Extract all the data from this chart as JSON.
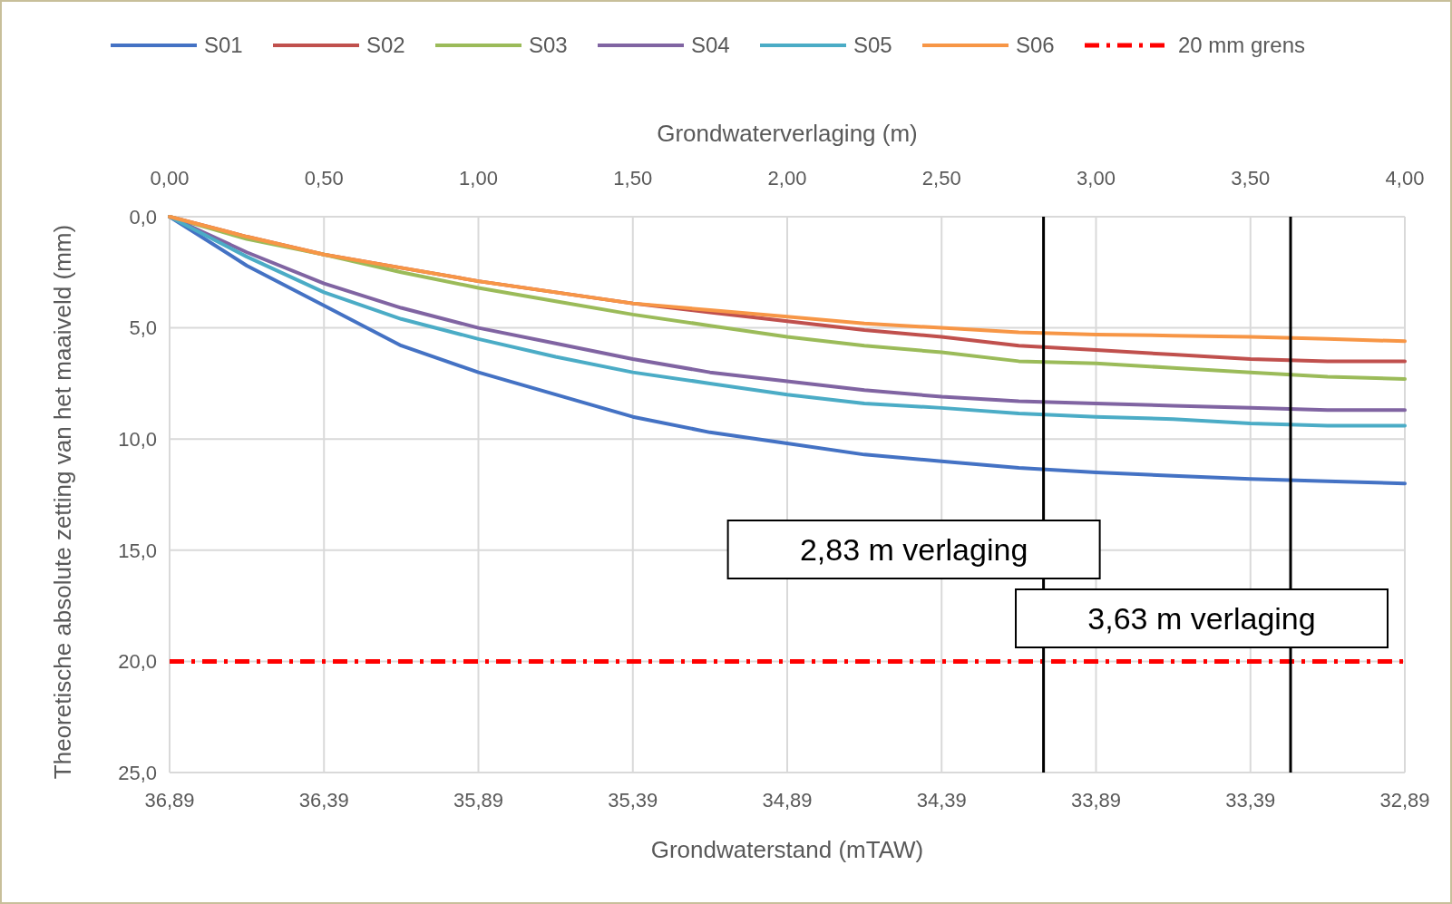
{
  "chart_data": {
    "type": "line",
    "xlabel": "Grondwaterstand (mTAW)",
    "x2label": "Grondwaterverlaging (m)",
    "ylabel": "Theoretische absolute zetting van het maaiveld (mm)",
    "x": [
      36.89,
      36.64,
      36.39,
      36.14,
      35.89,
      35.64,
      35.39,
      35.14,
      34.89,
      34.64,
      34.39,
      34.14,
      33.89,
      33.64,
      33.39,
      33.14,
      32.89
    ],
    "series": [
      {
        "name": "S01",
        "color": "#4472c4",
        "values": [
          0,
          2.2,
          4.0,
          5.8,
          7.0,
          8.0,
          9.0,
          9.7,
          10.2,
          10.7,
          11.0,
          11.3,
          11.5,
          11.65,
          11.8,
          11.9,
          12.0
        ]
      },
      {
        "name": "S02",
        "color": "#c0504d",
        "values": [
          0,
          0.9,
          1.7,
          2.3,
          2.9,
          3.4,
          3.9,
          4.3,
          4.7,
          5.1,
          5.4,
          5.8,
          6.0,
          6.2,
          6.4,
          6.5,
          6.5
        ]
      },
      {
        "name": "S03",
        "color": "#9bbb59",
        "values": [
          0,
          1.0,
          1.7,
          2.5,
          3.2,
          3.8,
          4.4,
          4.9,
          5.4,
          5.8,
          6.1,
          6.5,
          6.6,
          6.8,
          7.0,
          7.2,
          7.3
        ]
      },
      {
        "name": "S04",
        "color": "#8064a2",
        "values": [
          0,
          1.6,
          3.0,
          4.1,
          5.0,
          5.7,
          6.4,
          7.0,
          7.4,
          7.8,
          8.1,
          8.3,
          8.4,
          8.5,
          8.6,
          8.7,
          8.7
        ]
      },
      {
        "name": "S05",
        "color": "#4bacc6",
        "values": [
          0,
          1.8,
          3.4,
          4.6,
          5.5,
          6.3,
          7.0,
          7.5,
          8.0,
          8.4,
          8.6,
          8.85,
          9.0,
          9.1,
          9.3,
          9.4,
          9.4
        ]
      },
      {
        "name": "S06",
        "color": "#f79646",
        "values": [
          0,
          0.9,
          1.7,
          2.3,
          2.9,
          3.4,
          3.9,
          4.2,
          4.5,
          4.8,
          5.0,
          5.2,
          5.3,
          5.35,
          5.4,
          5.5,
          5.6
        ]
      }
    ],
    "xlim": [
      36.89,
      32.89
    ],
    "xticks": [
      {
        "value": 36.89,
        "label": "36,89"
      },
      {
        "value": 36.39,
        "label": "36,39"
      },
      {
        "value": 35.89,
        "label": "35,89"
      },
      {
        "value": 35.39,
        "label": "35,39"
      },
      {
        "value": 34.89,
        "label": "34,89"
      },
      {
        "value": 34.39,
        "label": "34,39"
      },
      {
        "value": 33.89,
        "label": "33,89"
      },
      {
        "value": 33.39,
        "label": "33,39"
      },
      {
        "value": 32.89,
        "label": "32,89"
      }
    ],
    "x2lim": [
      0,
      4
    ],
    "x2ticks": [
      {
        "value": 0,
        "label": "0,00"
      },
      {
        "value": 0.5,
        "label": "0,50"
      },
      {
        "value": 1,
        "label": "1,00"
      },
      {
        "value": 1.5,
        "label": "1,50"
      },
      {
        "value": 2,
        "label": "2,00"
      },
      {
        "value": 2.5,
        "label": "2,50"
      },
      {
        "value": 3,
        "label": "3,00"
      },
      {
        "value": 3.5,
        "label": "3,50"
      },
      {
        "value": 4,
        "label": "4,00"
      }
    ],
    "ylim": [
      25,
      0
    ],
    "yticks": [
      {
        "value": 0,
        "label": "0,0"
      },
      {
        "value": 5,
        "label": "5,0"
      },
      {
        "value": 10,
        "label": "10,0"
      },
      {
        "value": 15,
        "label": "15,0"
      },
      {
        "value": 20,
        "label": "20,0"
      },
      {
        "value": 25,
        "label": "25,0"
      }
    ],
    "ref_lines": [
      {
        "axis": "y",
        "value": 20,
        "label": "20 mm grens",
        "color": "#ff0000",
        "line_style": "dashdot"
      },
      {
        "axis": "x",
        "value": 34.06,
        "label": "2,83 m verlaging",
        "color": "#000000"
      },
      {
        "axis": "x",
        "value": 33.26,
        "label": "3,63 m verlaging",
        "color": "#000000"
      }
    ],
    "grid": true,
    "legend": "top",
    "marker": "none"
  }
}
